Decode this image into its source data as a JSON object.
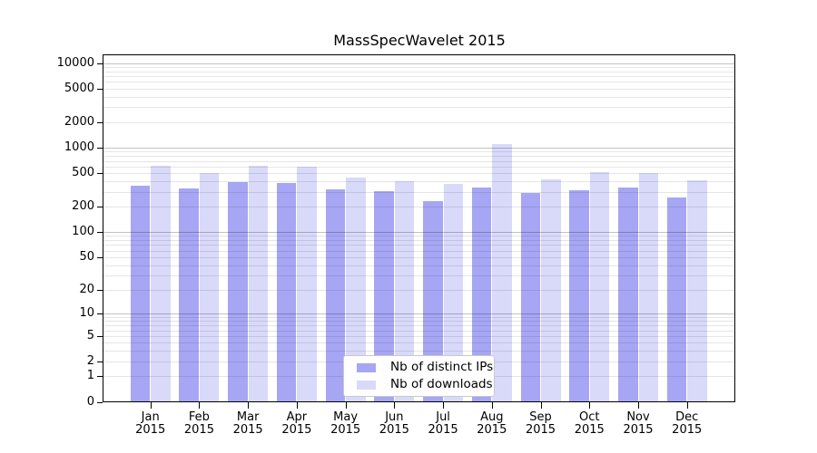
{
  "title": "MassSpecWavelet 2015",
  "chart_data": {
    "type": "bar",
    "title": "MassSpecWavelet 2015",
    "y_scale": "log1p",
    "grid": true,
    "legend_position": "bottom-center",
    "categories": [
      "Jan",
      "Feb",
      "Mar",
      "Apr",
      "May",
      "Jun",
      "Jul",
      "Aug",
      "Sep",
      "Oct",
      "Nov",
      "Dec"
    ],
    "x_year_label": "2015",
    "yticks": [
      0,
      1,
      2,
      5,
      10,
      20,
      50,
      100,
      200,
      500,
      1000,
      2000,
      5000,
      10000
    ],
    "ylim": [
      0,
      12500
    ],
    "xlabel": "",
    "ylabel": "",
    "series": [
      {
        "name": "Nb of distinct IPs",
        "color": "#a6a6f4",
        "values": [
          355,
          330,
          395,
          380,
          320,
          305,
          235,
          335,
          290,
          310,
          340,
          255
        ]
      },
      {
        "name": "Nb of downloads",
        "color": "#d9d9fa",
        "values": [
          610,
          505,
          610,
          595,
          445,
          400,
          370,
          1100,
          425,
          515,
          505,
          410
        ]
      }
    ],
    "colors": {
      "background": "#ffffff",
      "spine": "#000000",
      "text": "#000000",
      "legend_border": "#c9c9c9"
    }
  }
}
